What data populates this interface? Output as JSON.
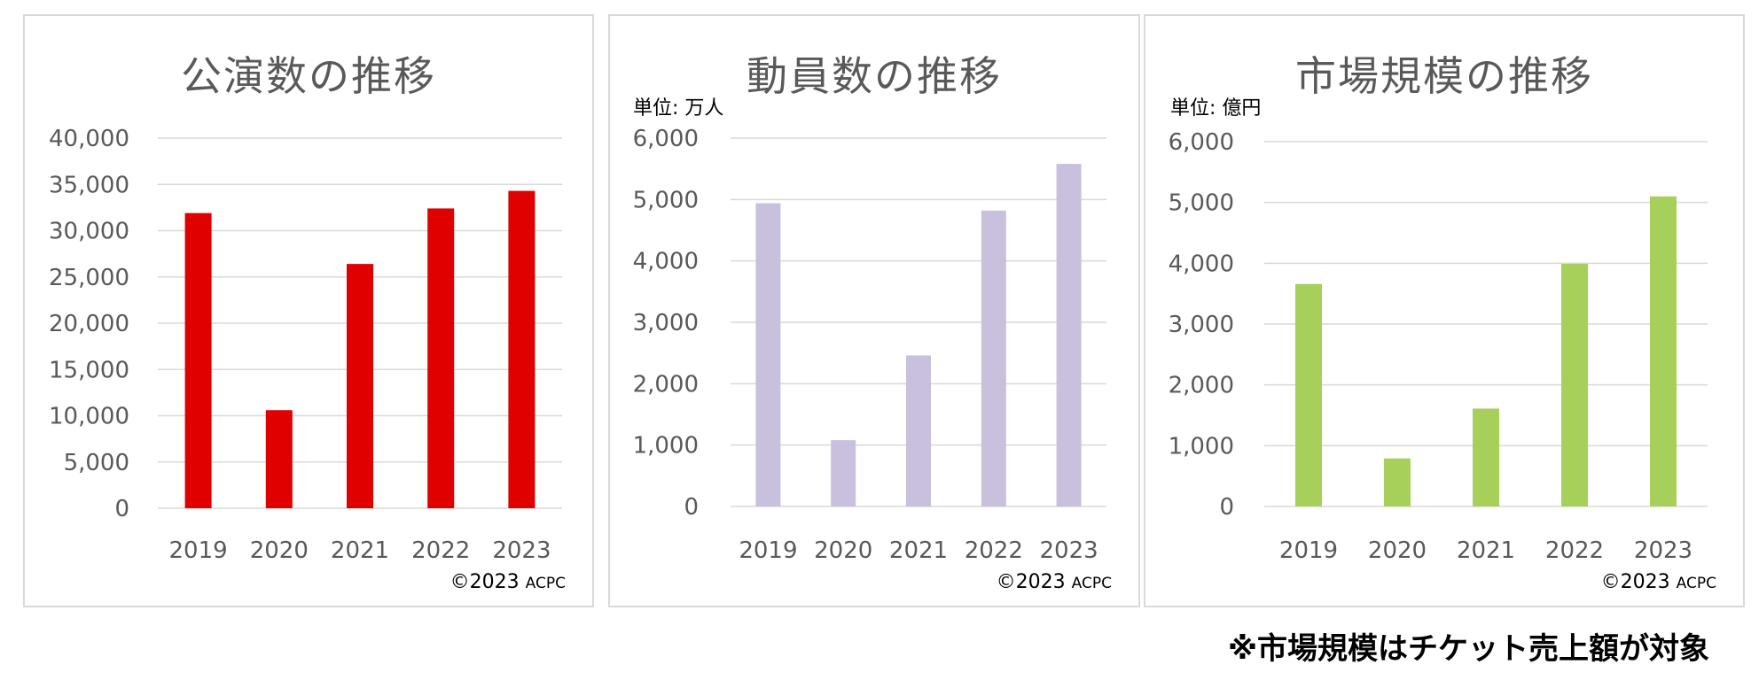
{
  "chart_data": [
    {
      "type": "bar",
      "title": "公演数の推移",
      "unit": "",
      "categories": [
        "2019",
        "2020",
        "2021",
        "2022",
        "2023"
      ],
      "values": [
        31900,
        10600,
        26400,
        32400,
        34300
      ],
      "ylim": [
        0,
        40000
      ],
      "yticks": [
        "0",
        "5,000",
        "10,000",
        "15,000",
        "20,000",
        "25,000",
        "30,000",
        "35,000",
        "40,000"
      ],
      "color": "#e00000",
      "grid": true,
      "credit_main": "©2023",
      "credit_sub": "ACPC"
    },
    {
      "type": "bar",
      "title": "動員数の推移",
      "unit": "単位: 万人",
      "categories": [
        "2019",
        "2020",
        "2021",
        "2022",
        "2023"
      ],
      "values": [
        4940,
        1080,
        2460,
        4820,
        5580
      ],
      "ylim": [
        0,
        6000
      ],
      "yticks": [
        "0",
        "1,000",
        "2,000",
        "3,000",
        "4,000",
        "5,000",
        "6,000"
      ],
      "color": "#c8c0dc",
      "grid": true,
      "credit_main": "©2023",
      "credit_sub": "ACPC"
    },
    {
      "type": "bar",
      "title": "市場規模の推移",
      "unit": "単位: 億円",
      "categories": [
        "2019",
        "2020",
        "2021",
        "2022",
        "2023"
      ],
      "values": [
        3660,
        790,
        1610,
        3990,
        5100
      ],
      "ylim": [
        0,
        6000
      ],
      "yticks": [
        "0",
        "1,000",
        "2,000",
        "3,000",
        "4,000",
        "5,000",
        "6,000"
      ],
      "color": "#a6d05a",
      "grid": true,
      "credit_main": "©2023",
      "credit_sub": "ACPC"
    }
  ],
  "footnote": "※市場規模はチケット売上額が対象"
}
